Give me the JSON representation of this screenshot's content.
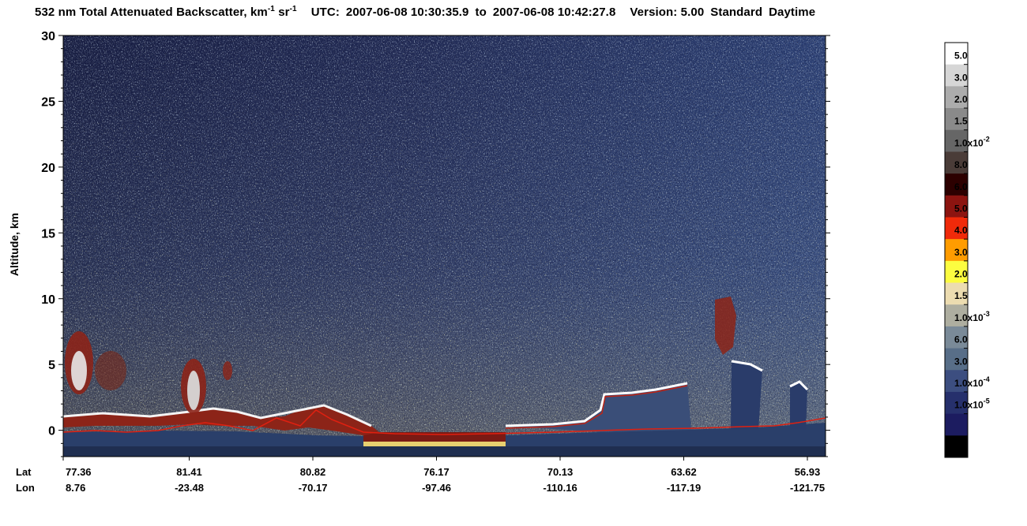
{
  "chart_data": {
    "type": "heatmap",
    "title": {
      "product": "532 nm Total Attenuated Backscatter, km",
      "unit_exp1": "-1",
      "unit_mid": " sr",
      "unit_exp2": "-1",
      "utc_label": "UTC:",
      "start_time": "2007-06-08 10:30:35.9",
      "to_word": "to",
      "end_time": "2007-06-08 10:42:27.8",
      "version_label": "Version: 5.00",
      "standard": "Standard",
      "daytime": "Daytime"
    },
    "ylabel": "Altitude, km",
    "ylim": [
      -2,
      30
    ],
    "yticks": [
      "0",
      "5",
      "10",
      "15",
      "20",
      "25",
      "30"
    ],
    "xaxis": {
      "lat_label": "Lat",
      "lon_label": "Lon",
      "lat": [
        "77.36",
        "81.41",
        "80.82",
        "76.17",
        "70.13",
        "63.62",
        "56.93"
      ],
      "lon": [
        "8.76",
        "-23.48",
        "-70.17",
        "-97.46",
        "-110.16",
        "-117.19",
        "-121.75"
      ]
    },
    "colorbar": {
      "colors": [
        "#ffffff",
        "#d6d6d6",
        "#acacac",
        "#8a8a8a",
        "#666666",
        "#4a3c38",
        "#2c0000",
        "#8c1410",
        "#f02a0a",
        "#ff9c00",
        "#fcfc40",
        "#ecdcb0",
        "#aeaea0",
        "#7a8a98",
        "#586e88",
        "#3c4e80",
        "#26306c",
        "#1c1c60",
        "#000000"
      ],
      "labels": [
        {
          "base": "5.0",
          "exp": ""
        },
        {
          "base": "3.0",
          "exp": ""
        },
        {
          "base": "2.0",
          "exp": ""
        },
        {
          "base": "1.5",
          "exp": ""
        },
        {
          "base": "1.0x10",
          "exp": "-2"
        },
        {
          "base": "8.0",
          "exp": ""
        },
        {
          "base": "6.0",
          "exp": ""
        },
        {
          "base": "5.0",
          "exp": ""
        },
        {
          "base": "4.0",
          "exp": ""
        },
        {
          "base": "3.0",
          "exp": ""
        },
        {
          "base": "2.0",
          "exp": ""
        },
        {
          "base": "1.5",
          "exp": ""
        },
        {
          "base": "1.0x10",
          "exp": "-3"
        },
        {
          "base": "6.0",
          "exp": ""
        },
        {
          "base": "3.0",
          "exp": ""
        },
        {
          "base": "1.0x10",
          "exp": "-4"
        },
        {
          "base": "1.0x10",
          "exp": "-5"
        }
      ]
    }
  }
}
